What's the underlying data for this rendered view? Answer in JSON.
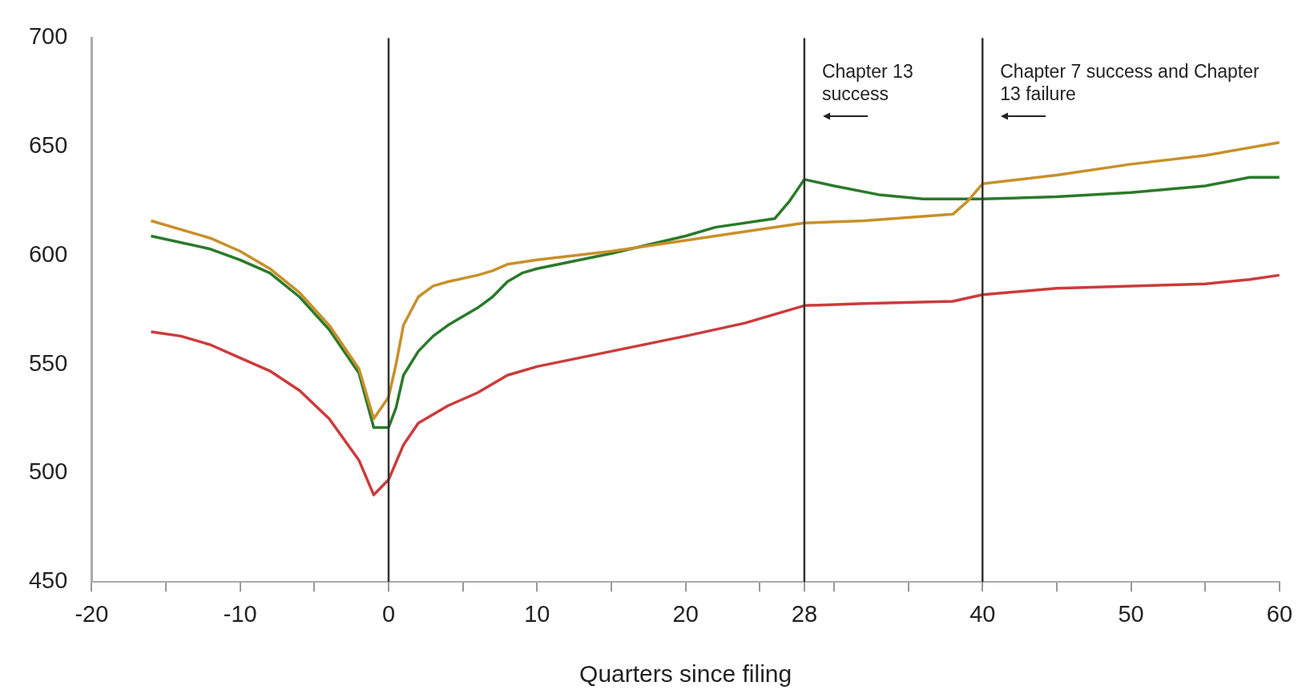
{
  "chart_data": {
    "type": "line",
    "xlabel": "Quarters since filing",
    "xlim": [
      -20,
      60
    ],
    "xticks": [
      -20,
      {
        "value": -15,
        "label": null
      },
      -10,
      {
        "value": -5,
        "label": null
      },
      0,
      {
        "value": 5,
        "label": null
      },
      10,
      {
        "value": 15,
        "label": null
      },
      20,
      {
        "value": 25,
        "label": null
      },
      28,
      {
        "value": 30,
        "label": null
      },
      {
        "value": 35,
        "label": null
      },
      40,
      {
        "value": 45,
        "label": null
      },
      50,
      {
        "value": 55,
        "label": null
      },
      60
    ],
    "ylim": [
      450,
      700
    ],
    "yticks": [
      450,
      500,
      550,
      600,
      650,
      700
    ],
    "grid": false,
    "legend": false,
    "marker": "none",
    "line_style": "solid",
    "series": [
      {
        "color": "#c8902a",
        "x": [
          -16,
          -12,
          -10,
          -8,
          -6,
          -4,
          -2,
          -1,
          0,
          0.5,
          1,
          2,
          3,
          4,
          6,
          7,
          8,
          10,
          15,
          20,
          25,
          28,
          32,
          36,
          38,
          39,
          40,
          45,
          50,
          55,
          60
        ],
        "values": [
          616,
          608,
          602,
          594,
          583,
          568,
          548,
          525,
          535,
          550,
          568,
          581,
          586,
          588,
          591,
          593,
          596,
          598,
          602,
          607,
          612,
          615,
          616,
          618,
          619,
          625,
          633,
          637,
          642,
          646,
          652
        ]
      },
      {
        "color": "#2a7a2a",
        "x": [
          -16,
          -12,
          -10,
          -8,
          -6,
          -4,
          -2,
          -1,
          0,
          0.5,
          1,
          2,
          3,
          4,
          6,
          7,
          8,
          9,
          10,
          15,
          20,
          22,
          26,
          27,
          28,
          30,
          33,
          36,
          40,
          45,
          50,
          55,
          58,
          60
        ],
        "values": [
          609,
          603,
          598,
          592,
          581,
          566,
          546,
          521,
          521,
          530,
          545,
          556,
          563,
          568,
          576,
          581,
          588,
          592,
          594,
          601,
          609,
          613,
          617,
          625,
          635,
          632,
          628,
          626,
          626,
          627,
          629,
          632,
          636,
          636
        ]
      },
      {
        "color": "#cc3b3b",
        "x": [
          -16,
          -14,
          -12,
          -10,
          -8,
          -6,
          -4,
          -2,
          -1,
          0,
          1,
          2,
          4,
          6,
          8,
          10,
          15,
          20,
          24,
          28,
          32,
          38,
          40,
          45,
          50,
          55,
          58,
          60
        ],
        "values": [
          565,
          563,
          559,
          553,
          547,
          538,
          525,
          506,
          490,
          497,
          513,
          523,
          531,
          537,
          545,
          549,
          556,
          563,
          569,
          577,
          578,
          579,
          582,
          585,
          586,
          587,
          589,
          591
        ]
      }
    ],
    "ref_lines": [
      {
        "axis": "x",
        "value": 0,
        "color": "#333333"
      },
      {
        "axis": "x",
        "value": 28,
        "color": "#333333"
      },
      {
        "axis": "x",
        "value": 40,
        "color": "#333333"
      }
    ],
    "annotations": [
      {
        "text": "Chapter 13 success",
        "x": 28,
        "y": 695
      },
      {
        "text": "Chapter 7 success and Chapter 13 failure",
        "x": 40,
        "y": 695
      }
    ]
  }
}
